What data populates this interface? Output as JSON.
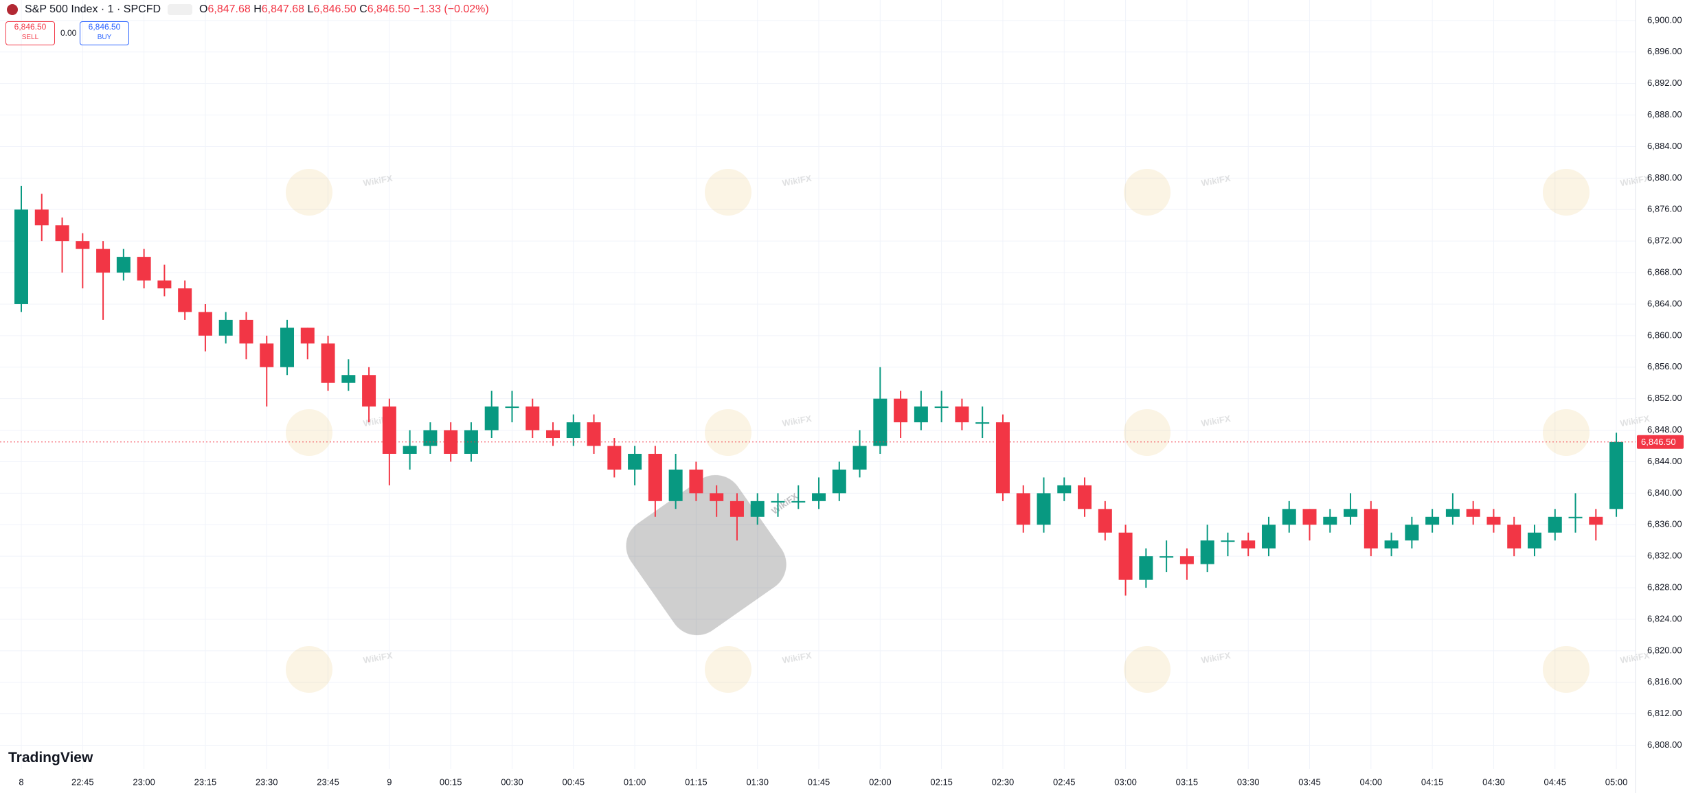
{
  "header": {
    "title": "S&P 500 Index · 1 · SPCFD",
    "ohlc": [
      {
        "key": "O",
        "value": "6,847.68"
      },
      {
        "key": "H",
        "value": "6,847.68"
      },
      {
        "key": "L",
        "value": "6,846.50"
      },
      {
        "key": "C",
        "value": "6,846.50"
      }
    ],
    "change": "−1.33 (−0.02%)"
  },
  "trade": {
    "sell": {
      "price": "6,846.50",
      "label": "SELL"
    },
    "spread": "0.00",
    "buy": {
      "price": "6,846.50",
      "label": "BUY"
    }
  },
  "logo": "TradingView",
  "watermark": "WikiFX",
  "chart_data": {
    "type": "candlestick",
    "up_color": "#089981",
    "down_color": "#f23645",
    "grid": true,
    "x": [
      "22:30",
      "22:35",
      "22:40",
      "22:45",
      "22:50",
      "22:55",
      "23:00",
      "23:05",
      "23:10",
      "23:15",
      "23:20",
      "23:25",
      "23:30",
      "23:35",
      "23:40",
      "23:45",
      "23:50",
      "23:55",
      "00:00",
      "00:05",
      "00:10",
      "00:15",
      "00:20",
      "00:25",
      "00:30",
      "00:35",
      "00:40",
      "00:45",
      "00:50",
      "00:55",
      "01:00",
      "01:05",
      "01:10",
      "01:15",
      "01:20",
      "01:25",
      "01:30",
      "01:35",
      "01:40",
      "01:45",
      "01:50",
      "01:55",
      "02:00",
      "02:05",
      "02:10",
      "02:15",
      "02:20",
      "02:25",
      "02:30",
      "02:35",
      "02:40",
      "02:45",
      "02:50",
      "02:55",
      "03:00",
      "03:05",
      "03:10",
      "03:15",
      "03:20",
      "03:25",
      "03:30",
      "03:35",
      "03:40",
      "03:45",
      "03:50",
      "03:55",
      "04:00",
      "04:05",
      "04:10",
      "04:15",
      "04:20",
      "04:25",
      "04:30",
      "04:35",
      "04:40",
      "04:45",
      "04:50",
      "04:55",
      "05:00"
    ],
    "open": [
      6864,
      6876,
      6874,
      6872,
      6871,
      6868,
      6870,
      6867,
      6866,
      6863,
      6860,
      6862,
      6859,
      6856,
      6861,
      6859,
      6854,
      6855,
      6851,
      6845,
      6846,
      6848,
      6845,
      6848,
      6851,
      6851,
      6848,
      6847,
      6849,
      6846,
      6843,
      6845,
      6839,
      6843,
      6840,
      6839,
      6837,
      6839,
      6839,
      6839,
      6840,
      6843,
      6846,
      6852,
      6849,
      6851,
      6851,
      6849,
      6849,
      6840,
      6836,
      6840,
      6841,
      6838,
      6835,
      6829,
      6832,
      6832,
      6831,
      6834,
      6834,
      6833,
      6836,
      6838,
      6836,
      6837,
      6838,
      6833,
      6834,
      6836,
      6837,
      6838,
      6837,
      6836,
      6833,
      6835,
      6837,
      6837,
      6838
    ],
    "high": [
      6879,
      6878,
      6875,
      6873,
      6872,
      6871,
      6871,
      6869,
      6867,
      6864,
      6863,
      6863,
      6860,
      6862,
      6861,
      6860,
      6857,
      6856,
      6852,
      6848,
      6849,
      6849,
      6849,
      6853,
      6853,
      6852,
      6849,
      6850,
      6850,
      6847,
      6846,
      6846,
      6845,
      6844,
      6841,
      6840,
      6840,
      6840,
      6841,
      6842,
      6844,
      6848,
      6856,
      6853,
      6853,
      6853,
      6852,
      6851,
      6850,
      6841,
      6842,
      6842,
      6842,
      6839,
      6836,
      6833,
      6834,
      6833,
      6836,
      6835,
      6835,
      6837,
      6839,
      6838,
      6838,
      6840,
      6839,
      6835,
      6837,
      6838,
      6840,
      6839,
      6838,
      6837,
      6836,
      6838,
      6840,
      6838,
      6847.68
    ],
    "low": [
      6863,
      6872,
      6868,
      6866,
      6862,
      6867,
      6866,
      6865,
      6862,
      6858,
      6859,
      6857,
      6851,
      6855,
      6857,
      6853,
      6853,
      6849,
      6841,
      6843,
      6845,
      6844,
      6844,
      6847,
      6849,
      6847,
      6846,
      6846,
      6845,
      6842,
      6841,
      6837,
      6838,
      6839,
      6837,
      6834,
      6836,
      6837,
      6838,
      6838,
      6839,
      6842,
      6845,
      6847,
      6848,
      6849,
      6848,
      6847,
      6839,
      6835,
      6835,
      6839,
      6837,
      6834,
      6827,
      6828,
      6830,
      6829,
      6830,
      6832,
      6832,
      6832,
      6835,
      6834,
      6835,
      6836,
      6832,
      6832,
      6833,
      6835,
      6836,
      6836,
      6835,
      6832,
      6832,
      6834,
      6835,
      6834,
      6837
    ],
    "close": [
      6876,
      6874,
      6872,
      6871,
      6868,
      6870,
      6867,
      6866,
      6863,
      6860,
      6862,
      6859,
      6856,
      6861,
      6859,
      6854,
      6855,
      6851,
      6845,
      6846,
      6848,
      6845,
      6848,
      6851,
      6851,
      6848,
      6847,
      6849,
      6846,
      6843,
      6845,
      6839,
      6843,
      6840,
      6839,
      6837,
      6839,
      6839,
      6839,
      6840,
      6843,
      6846,
      6852,
      6849,
      6851,
      6851,
      6849,
      6849,
      6840,
      6836,
      6840,
      6841,
      6838,
      6835,
      6829,
      6832,
      6832,
      6831,
      6834,
      6834,
      6833,
      6836,
      6838,
      6836,
      6837,
      6838,
      6833,
      6834,
      6836,
      6837,
      6838,
      6837,
      6836,
      6833,
      6835,
      6837,
      6837,
      6836,
      6846.5
    ],
    "ylim": [
      6805,
      6902.6
    ],
    "yticks": [
      {
        "value": 6808,
        "label": "6,808.00"
      },
      {
        "value": 6812,
        "label": "6,812.00"
      },
      {
        "value": 6816,
        "label": "6,816.00"
      },
      {
        "value": 6820,
        "label": "6,820.00"
      },
      {
        "value": 6824,
        "label": "6,824.00"
      },
      {
        "value": 6828,
        "label": "6,828.00"
      },
      {
        "value": 6832,
        "label": "6,832.00"
      },
      {
        "value": 6836,
        "label": "6,836.00"
      },
      {
        "value": 6840,
        "label": "6,840.00"
      },
      {
        "value": 6844,
        "label": "6,844.00"
      },
      {
        "value": 6848,
        "label": "6,848.00"
      },
      {
        "value": 6852,
        "label": "6,852.00"
      },
      {
        "value": 6856,
        "label": "6,856.00"
      },
      {
        "value": 6860,
        "label": "6,860.00"
      },
      {
        "value": 6864,
        "label": "6,864.00"
      },
      {
        "value": 6868,
        "label": "6,868.00"
      },
      {
        "value": 6872,
        "label": "6,872.00"
      },
      {
        "value": 6876,
        "label": "6,876.00"
      },
      {
        "value": 6880,
        "label": "6,880.00"
      },
      {
        "value": 6884,
        "label": "6,884.00"
      },
      {
        "value": 6888,
        "label": "6,888.00"
      },
      {
        "value": 6892,
        "label": "6,892.00"
      },
      {
        "value": 6896,
        "label": "6,896.00"
      },
      {
        "value": 6900,
        "label": "6,900.00"
      }
    ],
    "xticks": [
      {
        "value": "22:30",
        "label": "8"
      },
      "22:45",
      "23:00",
      "23:15",
      "23:30",
      "23:45",
      {
        "value": "00:00",
        "label": "9"
      },
      "00:15",
      "00:30",
      "00:45",
      "01:00",
      "01:15",
      "01:30",
      "01:45",
      "02:00",
      "02:15",
      "02:30",
      "02:45",
      "03:00",
      "03:15",
      "03:30",
      "03:45",
      "04:00",
      "04:15",
      "04:30",
      "04:45",
      "05:00"
    ],
    "last_price": {
      "value": 6846.5,
      "label": "6,846.50"
    }
  }
}
